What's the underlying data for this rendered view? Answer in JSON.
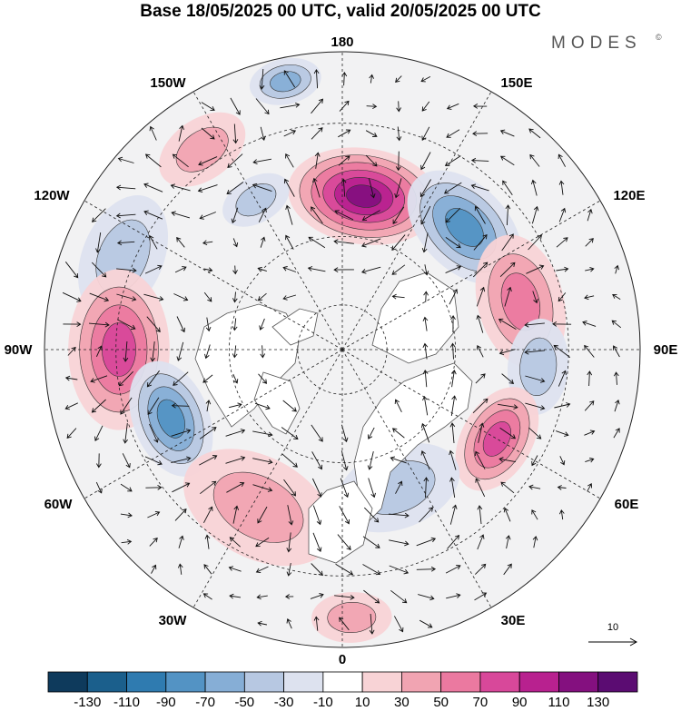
{
  "title": "Base 18/05/2025 00 UTC, valid 20/05/2025 00 UTC",
  "brand": "MODES",
  "brand_mark": "©",
  "longitude_labels": {
    "top": "180",
    "top_left": "150W",
    "top_right": "150E",
    "upper_left": "120W",
    "upper_right": "120E",
    "left": "90W",
    "right": "90E",
    "lower_left": "60W",
    "lower_right": "60E",
    "bottom_left": "30W",
    "bottom_right": "30E",
    "bottom": "0"
  },
  "vector_legend": {
    "label": "10"
  },
  "colorbar": {
    "ticks": [
      "-130",
      "-110",
      "-90",
      "-70",
      "-50",
      "-30",
      "-10",
      "10",
      "30",
      "50",
      "70",
      "90",
      "110",
      "130"
    ],
    "colors": [
      "#0e3a5c",
      "#1b5f8c",
      "#2f7bb0",
      "#5393c4",
      "#86aed6",
      "#b7c8e2",
      "#dde2ef",
      "#ffffff",
      "#f8d3d6",
      "#f1a4b2",
      "#eb79a0",
      "#d8489a",
      "#b8218f",
      "#84107f",
      "#5b0c72"
    ]
  },
  "map": {
    "projection": "north polar stereographic",
    "fields": [
      {
        "name": "anomaly-180-high",
        "lon": 172,
        "r": 0.52,
        "value": 120,
        "size": 0.19
      },
      {
        "name": "anomaly-140e-low",
        "lon": 135,
        "r": 0.58,
        "value": -80,
        "size": 0.17
      },
      {
        "name": "anomaly-165w-low",
        "lon": -168,
        "r": 0.92,
        "value": -60,
        "size": 0.09
      },
      {
        "name": "anomaly-150w-high",
        "lon": -145,
        "r": 0.82,
        "value": 35,
        "size": 0.12
      },
      {
        "name": "anomaly-150w-low",
        "lon": -150,
        "r": 0.58,
        "value": -40,
        "size": 0.09
      },
      {
        "name": "anomaly-120w-low",
        "lon": -113,
        "r": 0.8,
        "value": -45,
        "size": 0.16
      },
      {
        "name": "anomaly-90w-high",
        "lon": -90,
        "r": 0.75,
        "value": 80,
        "size": 0.2
      },
      {
        "name": "anomaly-100e-high",
        "lon": 105,
        "r": 0.62,
        "value": 50,
        "size": 0.17
      },
      {
        "name": "anomaly-90e-low",
        "lon": 85,
        "r": 0.66,
        "value": -40,
        "size": 0.12
      },
      {
        "name": "anomaly-60e-high",
        "lon": 60,
        "r": 0.6,
        "value": 80,
        "size": 0.14
      },
      {
        "name": "anomaly-70w-low",
        "lon": -68,
        "r": 0.62,
        "value": -70,
        "size": 0.15
      },
      {
        "name": "anomaly-30w-high",
        "lon": -28,
        "r": 0.6,
        "value": 40,
        "size": 0.2
      },
      {
        "name": "anomaly-20e-low",
        "lon": 22,
        "r": 0.5,
        "value": -45,
        "size": 0.16
      },
      {
        "name": "anomaly-0-high",
        "lon": 2,
        "r": 0.9,
        "value": 30,
        "size": 0.1
      }
    ]
  }
}
